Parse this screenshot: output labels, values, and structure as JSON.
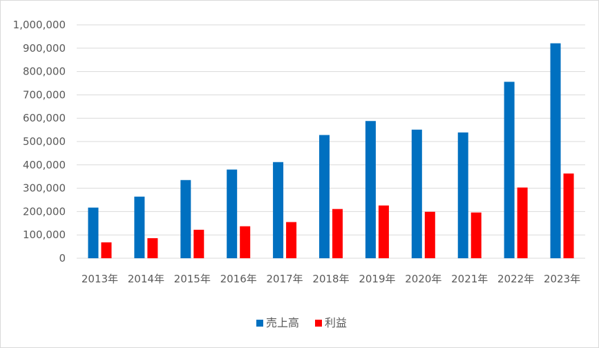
{
  "chart_data": {
    "type": "bar",
    "categories": [
      "2013年",
      "2014年",
      "2015年",
      "2016年",
      "2017年",
      "2018年",
      "2019年",
      "2020年",
      "2021年",
      "2022年",
      "2023年"
    ],
    "series": [
      {
        "name": "売上高",
        "color": "#0070c0",
        "values": [
          217000,
          264000,
          335000,
          380000,
          412000,
          528000,
          588000,
          551000,
          539000,
          756000,
          921000
        ]
      },
      {
        "name": "利益",
        "color": "#ff0000",
        "values": [
          68000,
          86000,
          122000,
          137000,
          155000,
          211000,
          226000,
          199000,
          196000,
          303000,
          363000
        ]
      }
    ],
    "ylim": [
      0,
      1000000
    ],
    "yticks": [
      "0",
      "100,000",
      "200,000",
      "300,000",
      "400,000",
      "500,000",
      "600,000",
      "700,000",
      "800,000",
      "900,000",
      "1,000,000"
    ],
    "grid": true,
    "legend_position": "bottom",
    "title": "",
    "xlabel": "",
    "ylabel": "",
    "grid_color": "#d9d9d9",
    "axis_color": "#d9d9d9"
  }
}
